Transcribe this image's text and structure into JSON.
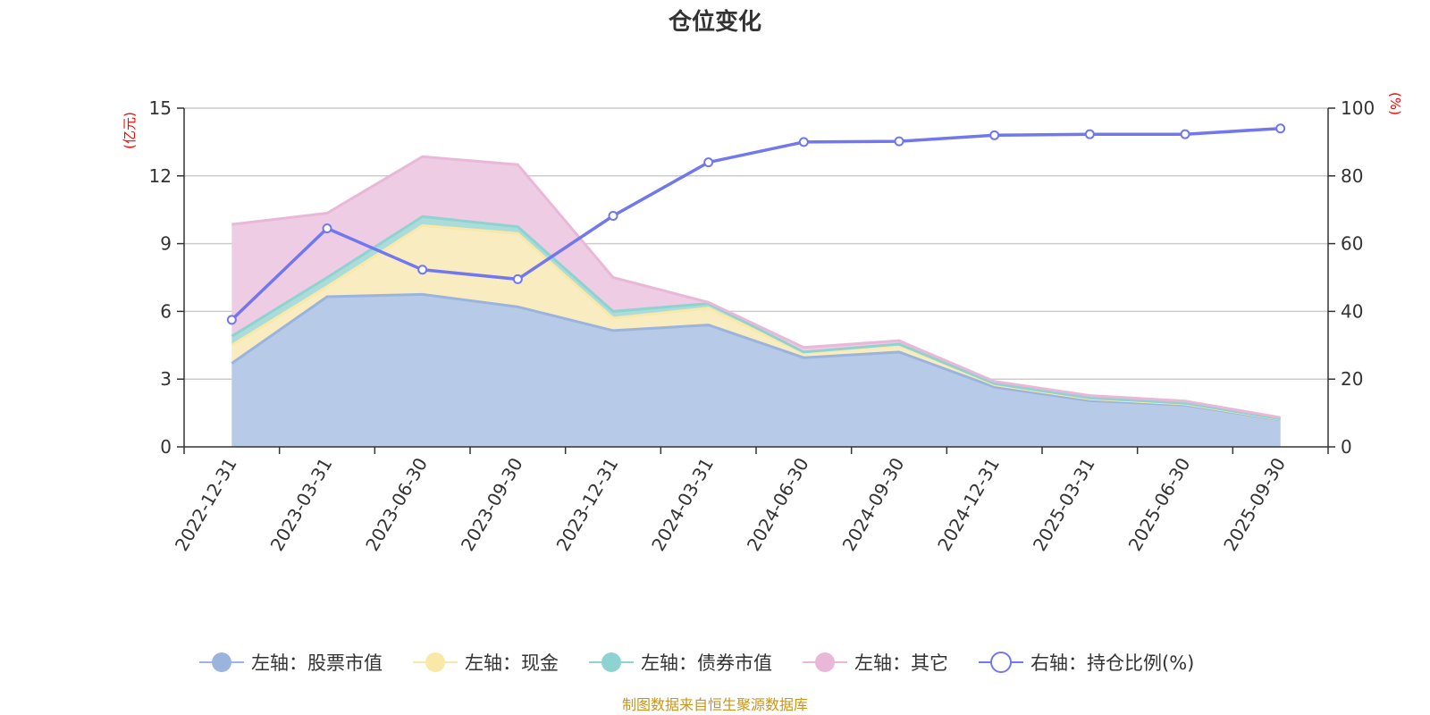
{
  "chart_data": {
    "type": "area",
    "title": "仓位变化",
    "source": "制图数据来自恒生聚源数据库",
    "categories": [
      "2022-12-31",
      "2023-03-31",
      "2023-06-30",
      "2023-09-30",
      "2023-12-31",
      "2024-03-31",
      "2024-06-30",
      "2024-09-30",
      "2024-12-31",
      "2025-03-31",
      "2025-06-30",
      "2025-09-30"
    ],
    "left_axis": {
      "unit": "(亿元)",
      "ylim": [
        0,
        15
      ],
      "ticks": [
        0,
        3,
        6,
        9,
        12,
        15
      ]
    },
    "right_axis": {
      "unit": "(%)",
      "ylim": [
        0,
        100
      ],
      "ticks": [
        0,
        20,
        40,
        60,
        80,
        100
      ]
    },
    "series": [
      {
        "name": "左轴：股票市值",
        "axis": "left",
        "stack": true,
        "color": "#9ab4dd",
        "fill": "#b7cae8",
        "values": [
          3.7,
          6.65,
          6.75,
          6.2,
          5.15,
          5.4,
          3.95,
          4.2,
          2.65,
          2.05,
          1.85,
          1.2
        ]
      },
      {
        "name": "左轴：现金",
        "axis": "left",
        "stack": true,
        "color": "#f9e8a8",
        "fill": "#f9ecc0",
        "values": [
          0.8,
          0.45,
          3.05,
          3.25,
          0.55,
          0.75,
          0.2,
          0.3,
          0.1,
          0.08,
          0.05,
          0.02
        ]
      },
      {
        "name": "左轴：债券市值",
        "axis": "left",
        "stack": true,
        "color": "#8ed3d1",
        "fill": "#abdcd9",
        "values": [
          0.4,
          0.4,
          0.4,
          0.3,
          0.3,
          0.2,
          0.05,
          0.05,
          0.05,
          0.04,
          0.03,
          0.02
        ]
      },
      {
        "name": "左轴：其它",
        "axis": "left",
        "stack": true,
        "color": "#e9b7d7",
        "fill": "#eecde4",
        "values": [
          4.95,
          2.85,
          2.65,
          2.75,
          1.5,
          0.05,
          0.2,
          0.15,
          0.1,
          0.1,
          0.1,
          0.06
        ]
      },
      {
        "name": "右轴：持仓比例(%)",
        "axis": "right",
        "stack": false,
        "color": "#7177ee",
        "values": [
          37.5,
          64.5,
          52.3,
          49.5,
          68.2,
          84.0,
          90.0,
          90.2,
          92.0,
          92.3,
          92.3,
          94.0
        ]
      }
    ]
  }
}
